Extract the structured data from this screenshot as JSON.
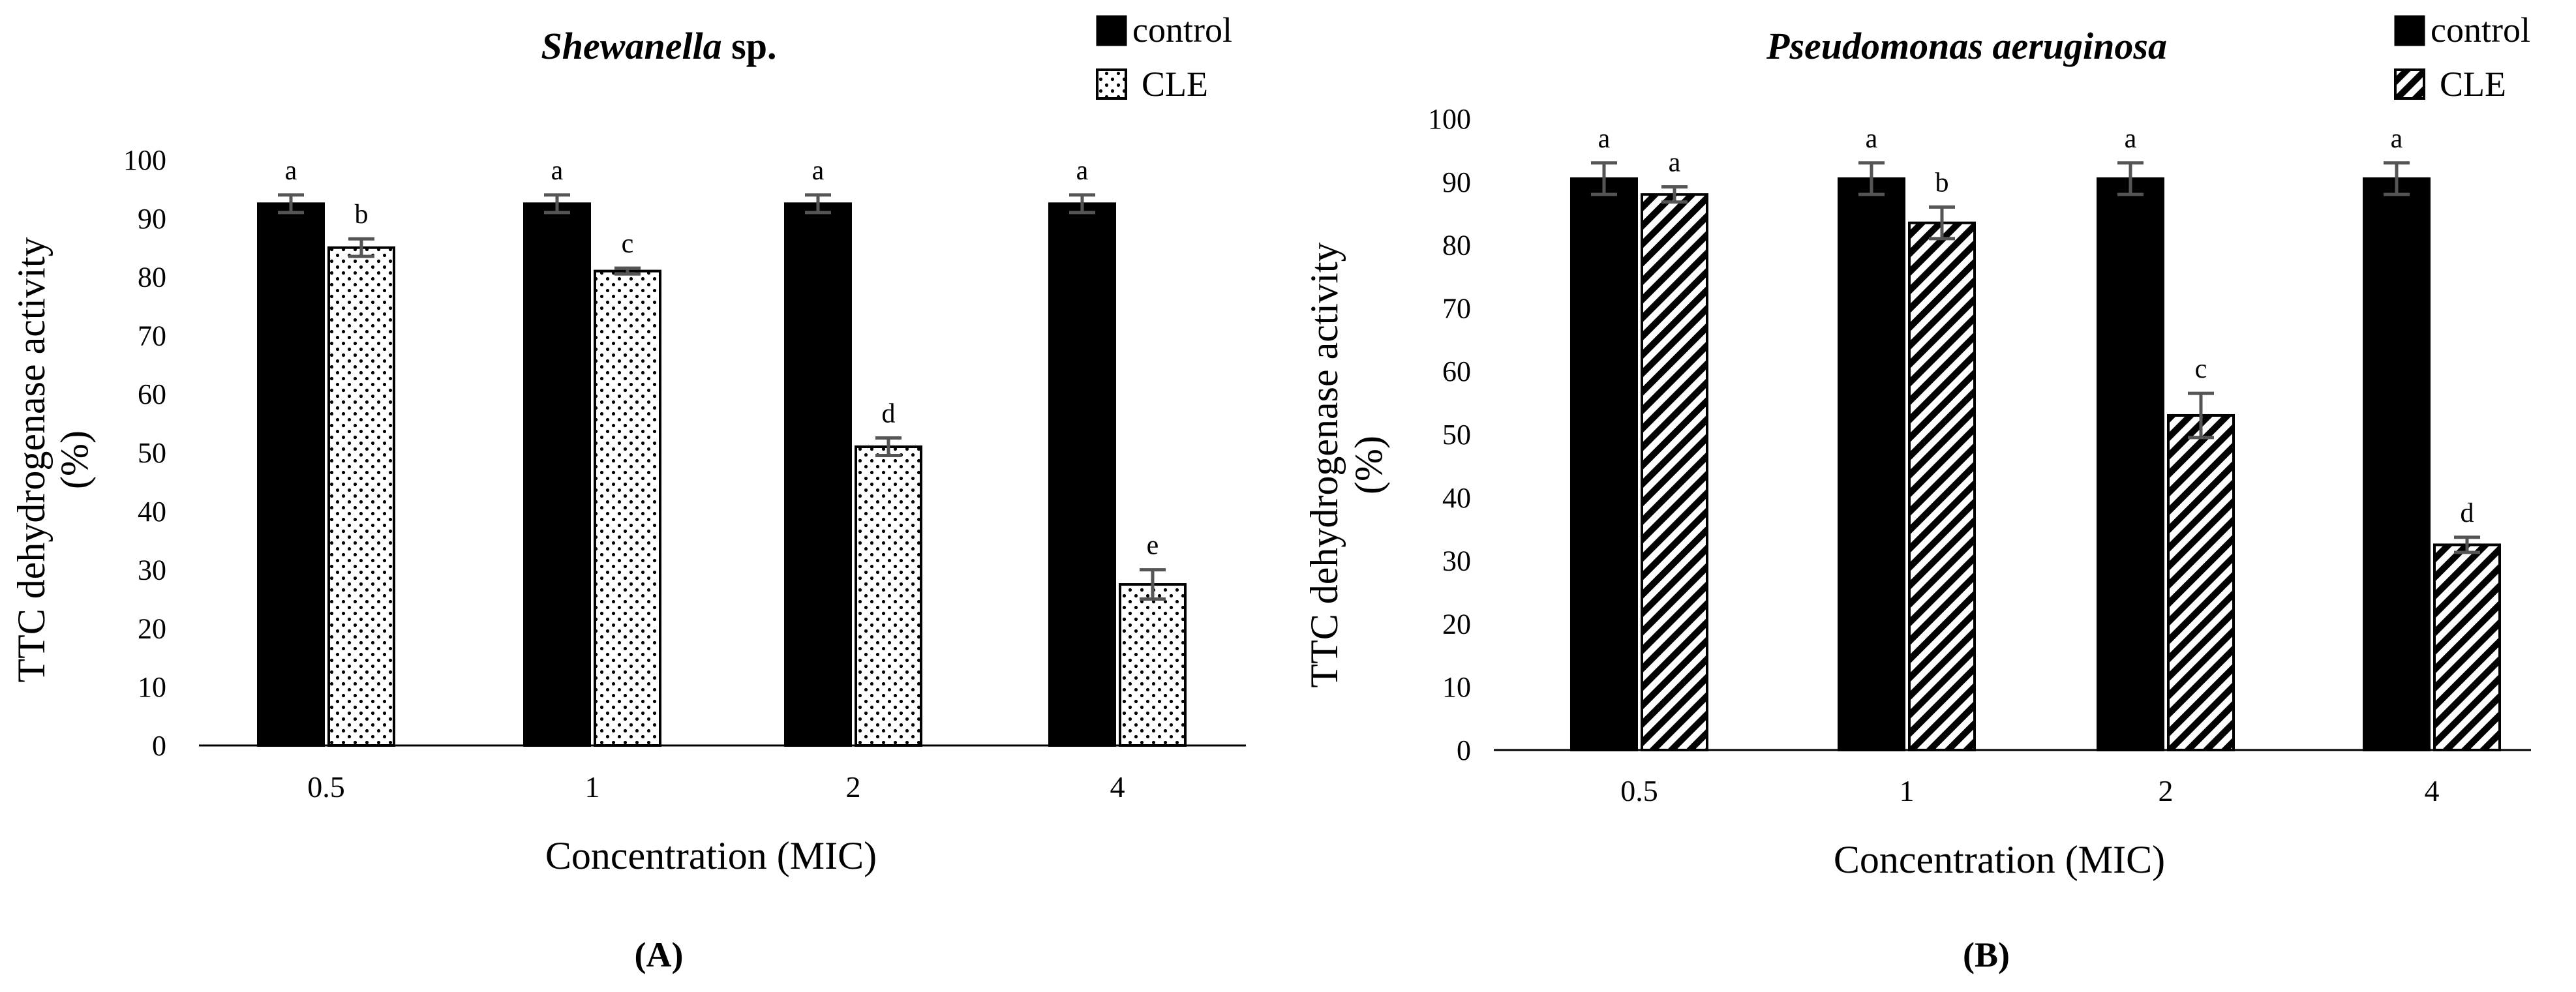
{
  "chart_data": [
    {
      "type": "bar",
      "title": "Shewanella sp.",
      "title_italic": "Shewanella",
      "title_rest": " sp.",
      "panel_label": "(A)",
      "xlabel": "Concentration (MIC)",
      "ylabel": "TTC dehydrogenase activity",
      "ylabel_sub": "(%)",
      "ylim": [
        0,
        100
      ],
      "yticks": [
        0,
        10,
        20,
        30,
        40,
        50,
        60,
        70,
        80,
        90,
        100
      ],
      "grid": false,
      "legend_position": "top-right",
      "categories": [
        "0.5",
        "1",
        "2",
        "4"
      ],
      "series": [
        {
          "name": "control",
          "pattern": "solid",
          "values": [
            92.5,
            92.5,
            92.5,
            92.5
          ],
          "errors": [
            1.5,
            1.5,
            1.5,
            1.5
          ],
          "labels": [
            "a",
            "a",
            "a",
            "a"
          ]
        },
        {
          "name": "CLE",
          "pattern": "dotted",
          "values": [
            85,
            81,
            51,
            27.5
          ],
          "errors": [
            1.5,
            0.5,
            1.5,
            2.5
          ],
          "labels": [
            "b",
            "c",
            "d",
            "e"
          ]
        }
      ]
    },
    {
      "type": "bar",
      "title": "Pseudomonas aeruginosa",
      "title_italic": "Pseudomonas aeruginosa",
      "title_rest": "",
      "panel_label": "(B)",
      "xlabel": "Concentration (MIC)",
      "ylabel": "TTC dehydrogenase activity",
      "ylabel_sub": "(%)",
      "ylim": [
        0,
        100
      ],
      "yticks": [
        0,
        10,
        20,
        30,
        40,
        50,
        60,
        70,
        80,
        90,
        100
      ],
      "grid": false,
      "legend_position": "top-right",
      "categories": [
        "0.5",
        "1",
        "2",
        "4"
      ],
      "series": [
        {
          "name": "control",
          "pattern": "solid",
          "values": [
            90.5,
            90.5,
            90.5,
            90.5
          ],
          "errors": [
            2.5,
            2.5,
            2.5,
            2.5
          ],
          "labels": [
            "a",
            "a",
            "a",
            "a"
          ]
        },
        {
          "name": "CLE",
          "pattern": "hatched",
          "values": [
            88,
            83.5,
            53,
            32.5
          ],
          "errors": [
            1.2,
            2.5,
            3.5,
            1.2
          ],
          "labels": [
            "a",
            "b",
            "c",
            "d"
          ]
        }
      ]
    }
  ]
}
